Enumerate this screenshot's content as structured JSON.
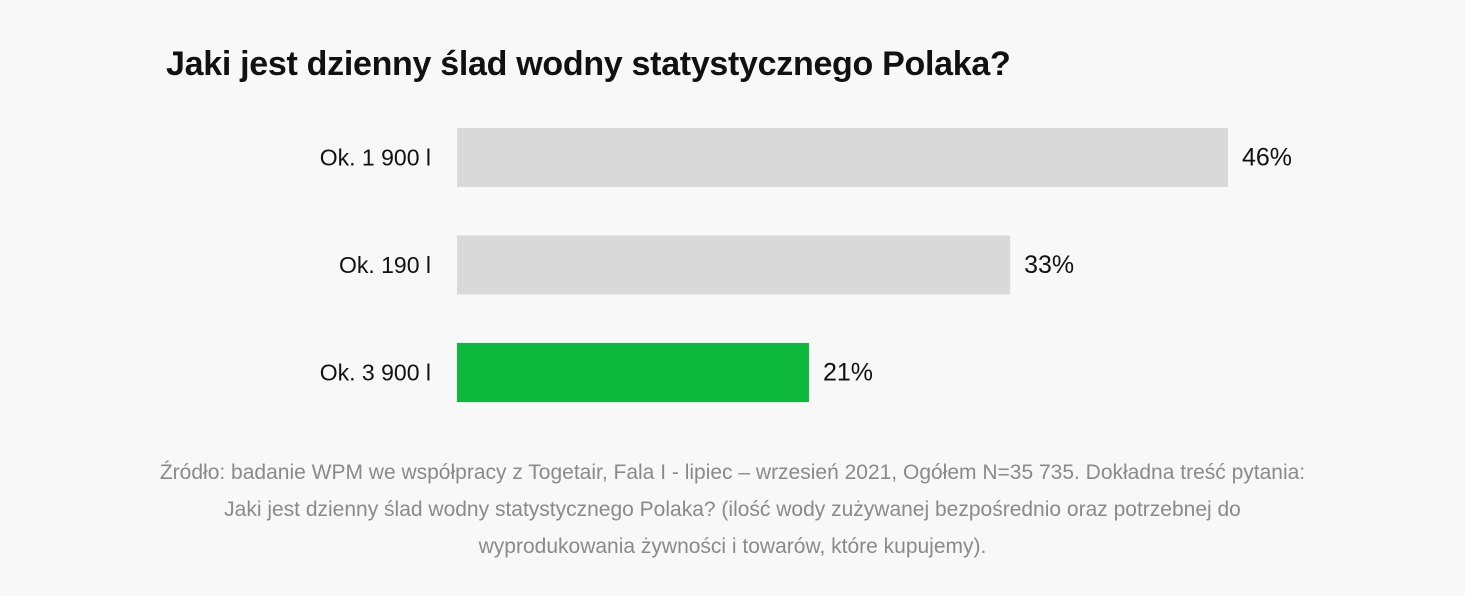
{
  "colors": {
    "background": "#f8f8f8",
    "bar_default": "#d9d9d9",
    "bar_highlight": "#0db83c",
    "text": "#111111",
    "source_text": "#8a8a8a"
  },
  "chart_data": {
    "type": "bar",
    "orientation": "horizontal",
    "title": "Jaki jest dzienny ślad wodny statystycznego Polaka?",
    "categories": [
      "Ok. 1 900 l",
      "Ok. 190 l",
      "Ok. 3 900 l"
    ],
    "values": [
      46,
      33,
      21
    ],
    "value_labels": [
      "46%",
      "33%",
      "21%"
    ],
    "highlighted_index": 2,
    "xlim": [
      0,
      46
    ],
    "grid": false,
    "legend": "none"
  },
  "source": {
    "text": "Źródło: badanie WPM we współpracy z Togetair, Fala I - lipiec – wrzesień 2021, Ogółem N=35 735. Dokładna treść pytania: Jaki jest dzienny ślad wodny statystycznego Polaka? (ilość wody zużywanej bezpośrednio oraz potrzebnej do wyprodukowania żywności i towarów, które kupujemy)."
  }
}
